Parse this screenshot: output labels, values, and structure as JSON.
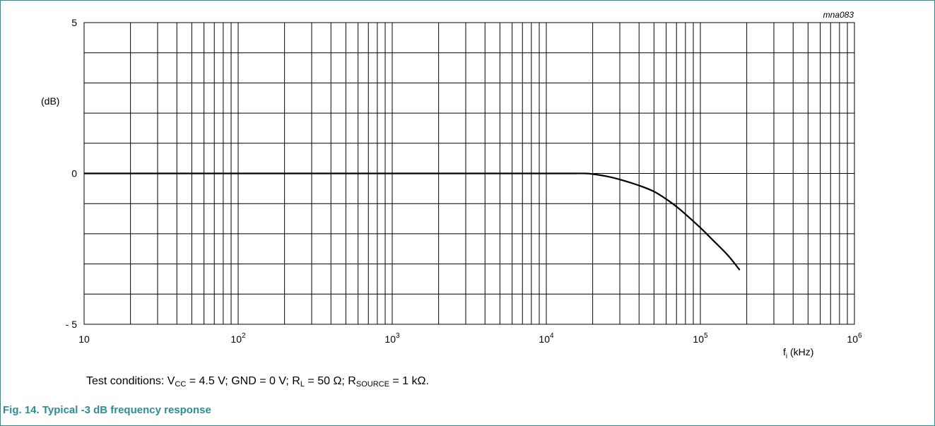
{
  "figure": {
    "code": "mna083",
    "caption": "Fig. 14.  Typical -3 dB frequency response",
    "caption_color": "#2e8c95"
  },
  "conditions": {
    "prefix": "Test conditions: V",
    "vcc_sub": "CC",
    "vcc_rest": " = 4.5 V; GND = 0 V; R",
    "rl_sub": "L",
    "rl_rest": " = 50 Ω; R",
    "rs_sub": "SOURCE",
    "rs_rest": " = 1 kΩ."
  },
  "chart_data": {
    "type": "line",
    "xscale": "log",
    "xlim": [
      10,
      1000000
    ],
    "ylim": [
      -5,
      5
    ],
    "ylabel": "(dB)",
    "xlabel_main": "f",
    "xlabel_sub": "i",
    "xlabel_unit": " (kHz)",
    "x_ticks": [
      {
        "base": "10",
        "exp": ""
      },
      {
        "base": "10",
        "exp": "2"
      },
      {
        "base": "10",
        "exp": "3"
      },
      {
        "base": "10",
        "exp": "4"
      },
      {
        "base": "10",
        "exp": "5"
      },
      {
        "base": "10",
        "exp": "6"
      }
    ],
    "y_ticks": [
      "5",
      "0",
      "- 5"
    ],
    "y_tick_values": [
      5,
      0,
      -5
    ],
    "x_tick_values": [
      10,
      100,
      1000,
      10000,
      100000,
      1000000
    ],
    "grid": true,
    "series": [
      {
        "x": [
          10,
          100,
          1000,
          10000,
          15000,
          18000,
          20000,
          25000,
          30000,
          40000,
          50000,
          60000,
          70000,
          80000,
          100000,
          120000,
          150000,
          180000
        ],
        "y": [
          0,
          0,
          0,
          0,
          0,
          0,
          -0.02,
          -0.1,
          -0.2,
          -0.4,
          -0.6,
          -0.85,
          -1.1,
          -1.35,
          -1.8,
          -2.2,
          -2.7,
          -3.2
        ]
      }
    ]
  }
}
